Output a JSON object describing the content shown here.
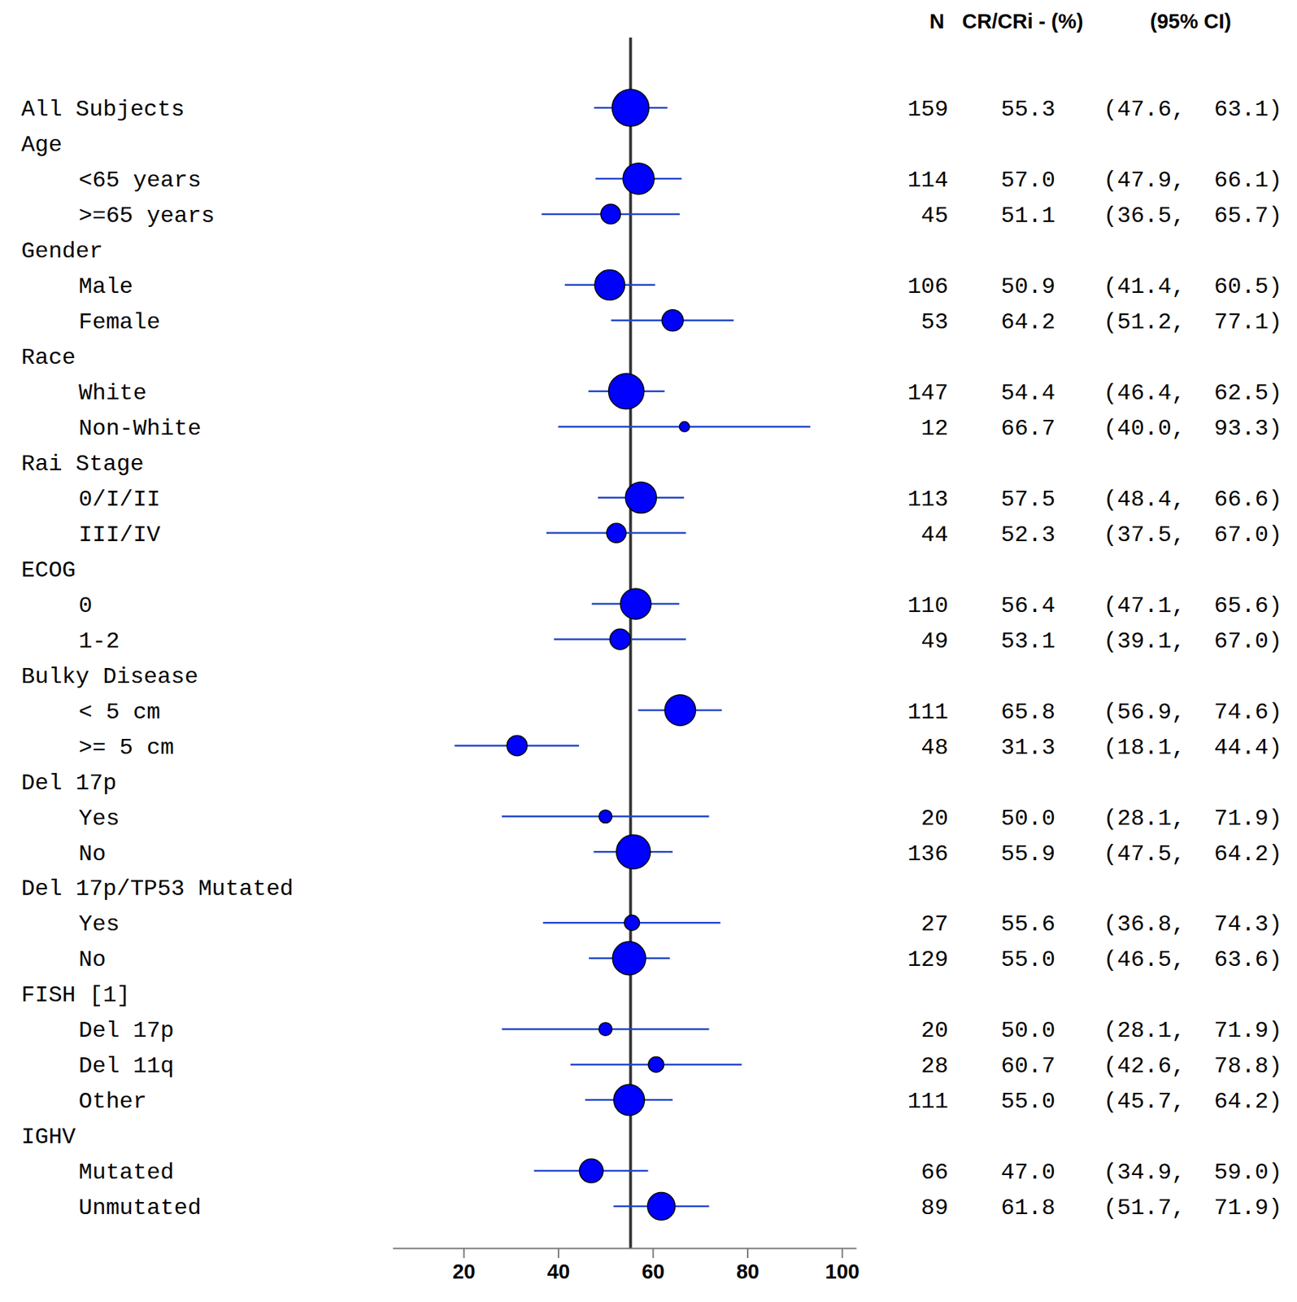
{
  "chart_data": {
    "type": "forest",
    "column_headers": [
      "N",
      "CR/CRi - (%)",
      "(95% CI)"
    ],
    "categories": [
      "All Subjects",
      "Age",
      "<65 years",
      ">=65 years",
      "Gender",
      "Male",
      "Female",
      "Race",
      "White",
      "Non-White",
      "Rai Stage",
      "0/I/II",
      "III/IV",
      "ECOG",
      "0",
      "1-2",
      "Bulky Disease",
      "< 5 cm",
      ">= 5 cm",
      "Del 17p",
      "Yes",
      "No",
      "Del 17p/TP53 Mutated",
      "Yes",
      "No",
      "FISH [1]",
      "Del 17p",
      "Del 11q",
      "Other",
      "IGHV",
      "Mutated",
      "Unmutated"
    ],
    "n": [
      159,
      null,
      114,
      45,
      null,
      106,
      53,
      null,
      147,
      12,
      null,
      113,
      44,
      null,
      110,
      49,
      null,
      111,
      48,
      null,
      20,
      136,
      null,
      27,
      129,
      null,
      20,
      28,
      111,
      null,
      66,
      89
    ],
    "values": [
      55.3,
      null,
      57.0,
      51.1,
      null,
      50.9,
      64.2,
      null,
      54.4,
      66.7,
      null,
      57.5,
      52.3,
      null,
      56.4,
      53.1,
      null,
      65.8,
      31.3,
      null,
      50.0,
      55.9,
      null,
      55.6,
      55.0,
      null,
      50.0,
      60.7,
      55.0,
      null,
      47.0,
      61.8
    ],
    "value_labels": [
      "55.3",
      null,
      "57.0",
      "51.1",
      null,
      "50.9",
      "64.2",
      null,
      "54.4",
      "66.7",
      null,
      "57.5",
      "52.3",
      null,
      "56.4",
      "53.1",
      null,
      "65.8",
      "31.3",
      null,
      "50.0",
      "55.9",
      null,
      "55.6",
      "55.0",
      null,
      "50.0",
      "60.7",
      "55.0",
      null,
      "47.0",
      "61.8"
    ],
    "ci_low": [
      47.6,
      null,
      47.9,
      36.5,
      null,
      41.4,
      51.2,
      null,
      46.4,
      40.0,
      null,
      48.4,
      37.5,
      null,
      47.1,
      39.1,
      null,
      56.9,
      18.1,
      null,
      28.1,
      47.5,
      null,
      36.8,
      46.5,
      null,
      28.1,
      42.6,
      45.7,
      null,
      34.9,
      51.7
    ],
    "ci_high": [
      63.1,
      null,
      66.1,
      65.7,
      null,
      60.5,
      77.1,
      null,
      62.5,
      93.3,
      null,
      66.6,
      67.0,
      null,
      65.6,
      67.0,
      null,
      74.6,
      44.4,
      null,
      71.9,
      64.2,
      null,
      74.3,
      63.6,
      null,
      71.9,
      78.8,
      64.2,
      null,
      59.0,
      71.9
    ],
    "ci_low_labels": [
      "(47.6,",
      null,
      "(47.9,",
      "(36.5,",
      null,
      "(41.4,",
      "(51.2,",
      null,
      "(46.4,",
      "(40.0,",
      null,
      "(48.4,",
      "(37.5,",
      null,
      "(47.1,",
      "(39.1,",
      null,
      "(56.9,",
      "(18.1,",
      null,
      "(28.1,",
      "(47.5,",
      null,
      "(36.8,",
      "(46.5,",
      null,
      "(28.1,",
      "(42.6,",
      "(45.7,",
      null,
      "(34.9,",
      "(51.7,"
    ],
    "ci_high_labels": [
      "63.1)",
      null,
      "66.1)",
      "65.7)",
      null,
      "60.5)",
      "77.1)",
      null,
      "62.5)",
      "93.3)",
      null,
      "66.6)",
      "67.0)",
      null,
      "65.6)",
      "67.0)",
      null,
      "74.6)",
      "44.4)",
      null,
      "71.9)",
      "64.2)",
      null,
      "74.3)",
      "63.6)",
      null,
      "71.9)",
      "78.8)",
      "64.2)",
      null,
      "59.0)",
      "71.9)"
    ],
    "reference": 55.3,
    "xlim": [
      5,
      103
    ],
    "xticks": [
      20,
      40,
      60,
      80,
      100
    ],
    "color": "#0000ff"
  }
}
